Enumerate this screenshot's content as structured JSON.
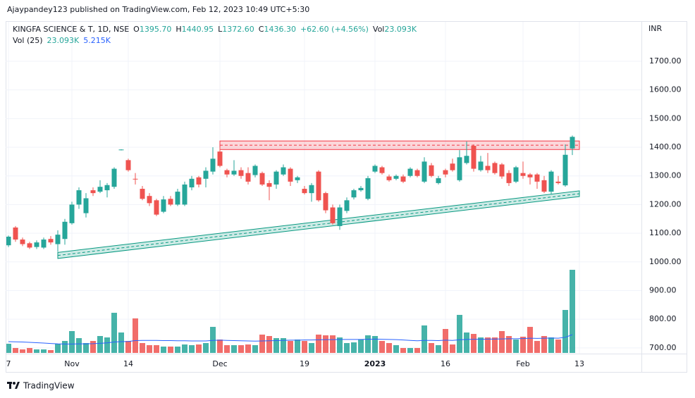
{
  "header": {
    "published": "Ajaypandey123 published on TradingView.com, Feb 12, 2023 10:49 UTC+5:30"
  },
  "legend": {
    "symbol": "KINGFA SCIENCE & T, 1D, NSE",
    "items": [
      {
        "label": "O",
        "value": "1395.70"
      },
      {
        "label": "H",
        "value": "1440.95"
      },
      {
        "label": "L",
        "value": "1372.60"
      },
      {
        "label": "C",
        "value": "1436.30"
      },
      {
        "label": "",
        "value": "+62.60 (+4.56%)"
      },
      {
        "label": "Vol",
        "value": "23.093K"
      }
    ],
    "volume_title": "Vol (25)",
    "volume_value": "23.093K",
    "volume_ma": "5.215K"
  },
  "footer": {
    "brand": "TradingView"
  },
  "chart_data": {
    "type": "candlestick",
    "currency": "INR",
    "categories": [
      "7",
      null,
      null,
      null,
      null,
      null,
      null,
      null,
      null,
      "Nov",
      null,
      null,
      null,
      null,
      null,
      null,
      null,
      "14",
      null,
      null,
      null,
      null,
      null,
      null,
      null,
      null,
      null,
      null,
      null,
      null,
      "Dec",
      null,
      null,
      null,
      null,
      null,
      null,
      null,
      null,
      null,
      null,
      null,
      "19",
      null,
      null,
      null,
      null,
      null,
      null,
      null,
      null,
      null,
      "2023",
      null,
      null,
      null,
      null,
      null,
      null,
      null,
      null,
      null,
      "16",
      null,
      null,
      null,
      null,
      null,
      null,
      null,
      null,
      null,
      null,
      "Feb",
      null,
      null,
      null,
      null,
      null,
      null,
      null,
      "13"
    ],
    "open": [
      1058,
      1120,
      1078,
      1065,
      1052,
      1050,
      1080,
      1062,
      1080,
      1135,
      1200,
      1170,
      1250,
      1245,
      1250,
      1262,
      1390,
      1355,
      1290,
      1255,
      1230,
      1215,
      1175,
      1220,
      1200,
      1200,
      1260,
      1295,
      1290,
      1315,
      1385,
      1320,
      1305,
      1320,
      1310,
      1303,
      1310,
      1275,
      1270,
      1305,
      1325,
      1285,
      1255,
      1240,
      1315,
      1240,
      1190,
      1125,
      1178,
      1225,
      1250,
      1220,
      1315,
      1330,
      1298,
      1290,
      1298,
      1300,
      1320,
      1280,
      1337,
      1275,
      1320,
      1343,
      1285,
      1345,
      1405,
      1320,
      1335,
      1345,
      1340,
      1310,
      1280,
      1310,
      1305,
      1305,
      1285,
      1245,
      1280,
      1267,
      1395.7,
      null
    ],
    "high": [
      1092,
      1125,
      1085,
      1070,
      1075,
      1085,
      1090,
      1110,
      1150,
      1210,
      1260,
      1240,
      1260,
      1285,
      1275,
      1330,
      1393,
      1360,
      1310,
      1265,
      1240,
      1220,
      1230,
      1230,
      1255,
      1280,
      1300,
      1300,
      1330,
      1400,
      1400,
      1325,
      1355,
      1330,
      1330,
      1340,
      1315,
      1285,
      1320,
      1340,
      1330,
      1300,
      1265,
      1275,
      1320,
      1245,
      1200,
      1200,
      1225,
      1255,
      1265,
      1300,
      1340,
      1335,
      1305,
      1305,
      1305,
      1330,
      1325,
      1365,
      1345,
      1300,
      1325,
      1360,
      1390,
      1420,
      1410,
      1370,
      1380,
      1350,
      1345,
      1320,
      1335,
      1350,
      1310,
      1310,
      1300,
      1320,
      1300,
      1410,
      1440.95,
      null
    ],
    "low": [
      1052,
      1070,
      1055,
      1045,
      1045,
      1045,
      1060,
      1035,
      1060,
      1130,
      1185,
      1155,
      1230,
      1240,
      1225,
      1255,
      1389,
      1315,
      1270,
      1215,
      1195,
      1160,
      1170,
      1195,
      1195,
      1195,
      1250,
      1260,
      1260,
      1305,
      1330,
      1295,
      1300,
      1290,
      1270,
      1295,
      1265,
      1215,
      1255,
      1300,
      1265,
      1275,
      1235,
      1210,
      1210,
      1170,
      1130,
      1112,
      1170,
      1218,
      1245,
      1215,
      1310,
      1305,
      1280,
      1285,
      1275,
      1295,
      1295,
      1275,
      1295,
      1270,
      1295,
      1315,
      1280,
      1340,
      1315,
      1315,
      1310,
      1305,
      1290,
      1265,
      1275,
      1290,
      1270,
      1255,
      1240,
      1235,
      1270,
      1262,
      1372.6,
      null
    ],
    "close": [
      1088,
      1078,
      1062,
      1050,
      1068,
      1078,
      1068,
      1095,
      1140,
      1200,
      1250,
      1222,
      1240,
      1262,
      1268,
      1325,
      1392,
      1320,
      1288,
      1220,
      1205,
      1165,
      1218,
      1200,
      1245,
      1270,
      1290,
      1270,
      1318,
      1360,
      1335,
      1305,
      1318,
      1300,
      1280,
      1335,
      1270,
      1262,
      1315,
      1330,
      1280,
      1295,
      1240,
      1268,
      1215,
      1180,
      1135,
      1190,
      1215,
      1250,
      1258,
      1292,
      1335,
      1310,
      1285,
      1300,
      1280,
      1325,
      1300,
      1350,
      1300,
      1292,
      1305,
      1320,
      1365,
      1370,
      1325,
      1350,
      1320,
      1310,
      1298,
      1275,
      1330,
      1300,
      1295,
      1280,
      1245,
      1315,
      1275,
      1373.7,
      1436.3,
      null
    ],
    "volume": [
      2720,
      1550,
      1160,
      1550,
      1160,
      1160,
      970,
      2720,
      3490,
      6210,
      4270,
      2910,
      3490,
      4850,
      4460,
      11250,
      5820,
      3490,
      9700,
      2910,
      2330,
      2330,
      1940,
      1940,
      1940,
      2520,
      2330,
      2520,
      2910,
      7370,
      3880,
      2330,
      2330,
      2330,
      2520,
      2330,
      5240,
      4850,
      4270,
      4270,
      3490,
      3880,
      3490,
      2910,
      5240,
      5040,
      5040,
      4460,
      2910,
      3100,
      3880,
      5040,
      4850,
      3490,
      2910,
      2330,
      1550,
      1550,
      1550,
      7760,
      2910,
      2330,
      6790,
      2520,
      10670,
      5820,
      5430,
      4460,
      4460,
      4460,
      6210,
      4850,
      3880,
      4660,
      7370,
      3490,
      4850,
      4460,
      3880,
      12030,
      23093,
      null
    ],
    "volume_ma": [
      3300,
      3250,
      3200,
      3100,
      3000,
      2900,
      2800,
      2700,
      2650,
      2650,
      2700,
      2700,
      2750,
      2850,
      2950,
      3200,
      3300,
      3350,
      3600,
      3650,
      3650,
      3650,
      3600,
      3600,
      3550,
      3550,
      3500,
      3500,
      3500,
      3650,
      3700,
      3650,
      3600,
      3550,
      3500,
      3450,
      3500,
      3550,
      3600,
      3650,
      3700,
      3700,
      3750,
      3750,
      3800,
      3850,
      3850,
      3900,
      3900,
      3900,
      3900,
      3950,
      4000,
      3950,
      3900,
      3850,
      3750,
      3650,
      3550,
      3650,
      3650,
      3600,
      3700,
      3650,
      3800,
      3900,
      3950,
      3950,
      4000,
      4000,
      4050,
      4100,
      4100,
      4150,
      4250,
      4200,
      4250,
      4300,
      4250,
      4500,
      5215,
      null
    ],
    "up_color": "#26a69a",
    "down_color": "#ef5350",
    "ma_color": "#2962ff",
    "ylim": [
      680,
      1840
    ],
    "yticks": [
      {
        "value": 700,
        "label": "700.00"
      },
      {
        "value": 800,
        "label": "800.00"
      },
      {
        "value": 900,
        "label": "900.00"
      },
      {
        "value": 1000,
        "label": "1000.00"
      },
      {
        "value": 1100,
        "label": "1100.00"
      },
      {
        "value": 1200,
        "label": "1200.00"
      },
      {
        "value": 1300,
        "label": "1300.00"
      },
      {
        "value": 1400,
        "label": "1400.00"
      },
      {
        "value": 1500,
        "label": "1500.00"
      },
      {
        "value": 1600,
        "label": "1600.00"
      },
      {
        "value": 1700,
        "label": "1700.00"
      }
    ],
    "grid": true,
    "zones": [
      {
        "color": "#f23645",
        "start": 30,
        "end": 81,
        "low_start": 1392,
        "low_end": 1392,
        "high_start": 1422,
        "high_end": 1422
      },
      {
        "color": "#089981",
        "start": 7,
        "end": 81,
        "low_start": 1012,
        "low_end": 1228,
        "high_start": 1033,
        "high_end": 1248
      }
    ]
  }
}
